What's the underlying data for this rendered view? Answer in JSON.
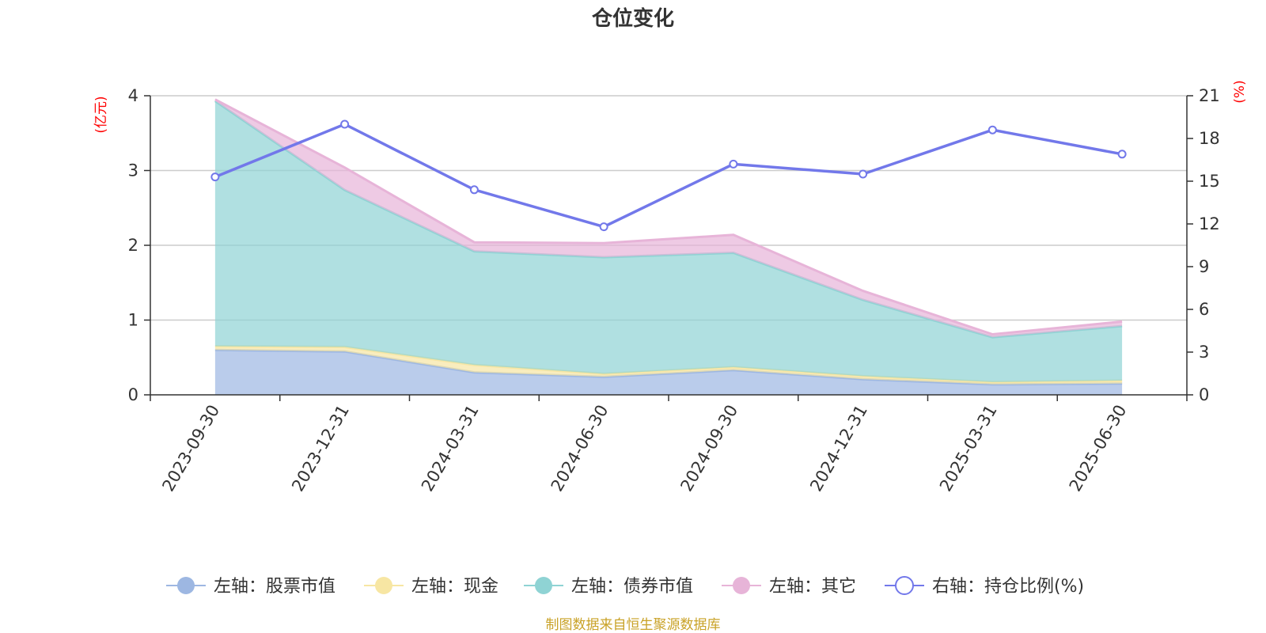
{
  "chart_data": {
    "type": "area",
    "title": "仓位变化",
    "categories": [
      "2023-09-30",
      "2023-12-31",
      "2024-03-31",
      "2024-06-30",
      "2024-09-30",
      "2024-12-31",
      "2025-03-31",
      "2025-06-30"
    ],
    "left_axis": {
      "unit": "(亿元)",
      "ylim": [
        0,
        4
      ],
      "ticks": [
        "0",
        "1",
        "2",
        "3",
        "4"
      ]
    },
    "right_axis": {
      "unit": "(%)",
      "ylim": [
        0,
        21
      ],
      "ticks": [
        "0",
        "3",
        "6",
        "9",
        "12",
        "15",
        "18",
        "21"
      ]
    },
    "series": [
      {
        "name": "左轴：股票市值",
        "axis": "left",
        "kind": "stacked-area",
        "color": "#9db7e2",
        "values": [
          0.6,
          0.58,
          0.3,
          0.24,
          0.33,
          0.21,
          0.14,
          0.15
        ]
      },
      {
        "name": "左轴：现金",
        "axis": "left",
        "kind": "stacked-area",
        "color": "#f7e6a3",
        "values": [
          0.05,
          0.06,
          0.1,
          0.04,
          0.04,
          0.04,
          0.03,
          0.04
        ]
      },
      {
        "name": "左轴：债券市值",
        "axis": "left",
        "kind": "stacked-area",
        "color": "#8fd3d4",
        "values": [
          3.28,
          2.1,
          1.52,
          1.56,
          1.53,
          1.02,
          0.6,
          0.73
        ]
      },
      {
        "name": "左轴：其它",
        "axis": "left",
        "kind": "stacked-area",
        "color": "#e7b4d8",
        "values": [
          0.02,
          0.3,
          0.12,
          0.19,
          0.24,
          0.12,
          0.04,
          0.06
        ]
      },
      {
        "name": "右轴：持仓比例(%)",
        "axis": "right",
        "kind": "line",
        "color": "#7278ea",
        "values": [
          15.3,
          19.0,
          14.4,
          11.8,
          16.2,
          15.5,
          18.6,
          16.9
        ]
      }
    ],
    "grid": true,
    "legend_position": "bottom"
  },
  "source_note": "制图数据来自恒生聚源数据库"
}
